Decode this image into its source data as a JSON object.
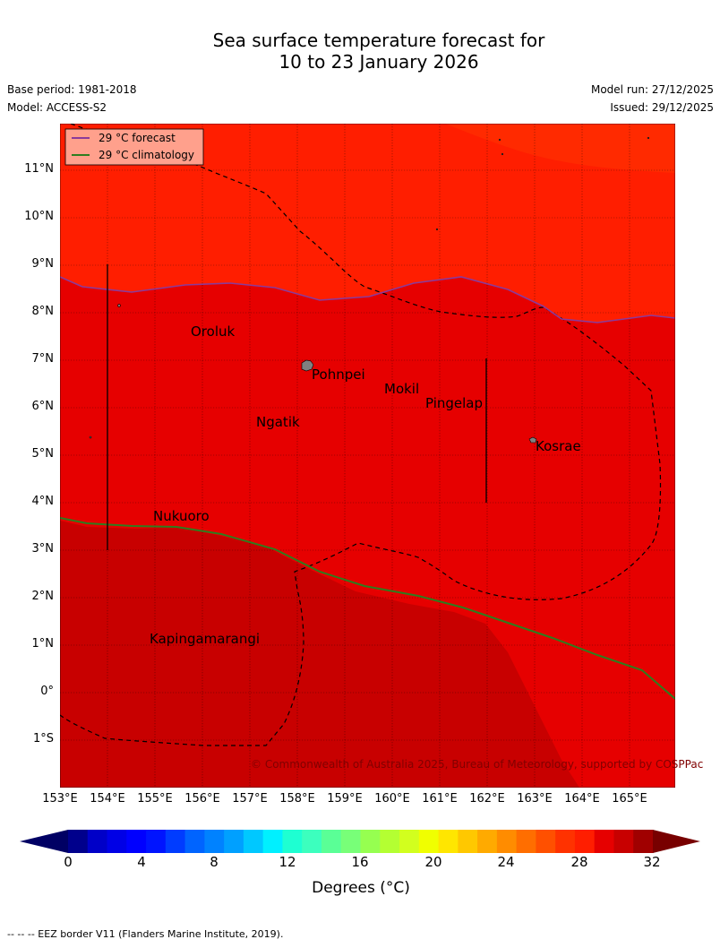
{
  "title_line1": "Sea surface temperature forecast for",
  "title_line2": "10 to 23 January 2026",
  "base_period": "Base period: 1981-2018",
  "model": "Model: ACCESS-S2",
  "model_run": "Model run: 27/12/2025",
  "issued": "Issued: 29/12/2025",
  "map": {
    "lon_range": [
      153,
      166
    ],
    "lat_range": [
      -2,
      12
    ],
    "lat_ticks": [
      "11°N",
      "10°N",
      "9°N",
      "8°N",
      "7°N",
      "6°N",
      "5°N",
      "4°N",
      "3°N",
      "2°N",
      "1°N",
      "0°",
      "1°S"
    ],
    "lon_ticks": [
      "153°E",
      "154°E",
      "155°E",
      "156°E",
      "157°E",
      "158°E",
      "159°E",
      "160°E",
      "161°E",
      "162°E",
      "163°E",
      "164°E",
      "165°E"
    ],
    "legend": [
      {
        "label": "29 °C  forecast",
        "color": "#8b3a9a"
      },
      {
        "label": "29 °C  climatology",
        "color": "#2e7d1e"
      }
    ],
    "places": [
      {
        "name": "Oroluk"
      },
      {
        "name": "Pohnpei"
      },
      {
        "name": "Mokil"
      },
      {
        "name": "Pingelap"
      },
      {
        "name": "Ngatik"
      },
      {
        "name": "Kosrae"
      },
      {
        "name": "Nukuoro"
      },
      {
        "name": "Kapingamarangi"
      }
    ],
    "copyright": "© Commonwealth of Australia 2025, Bureau of Meteorology, supported by COSPPac",
    "fill_colors": {
      "lt29": "#ff1e00",
      "29to30": "#e60000",
      "30to31": "#c80000",
      "gt28light": "#ff2a00"
    }
  },
  "colorbar": {
    "min": 0,
    "max": 32,
    "tick_labels": [
      "0",
      "4",
      "8",
      "12",
      "16",
      "20",
      "24",
      "28",
      "32"
    ],
    "colors": [
      "#00008c",
      "#0000c8",
      "#0000e6",
      "#0000ff",
      "#0014ff",
      "#003cff",
      "#0064ff",
      "#0082ff",
      "#00a0ff",
      "#00c8ff",
      "#00f0ff",
      "#1effd2",
      "#3cffbe",
      "#5aff96",
      "#78ff78",
      "#96ff50",
      "#b4ff32",
      "#d2ff1e",
      "#f0ff00",
      "#ffe600",
      "#ffc800",
      "#ffaa00",
      "#ff8c00",
      "#ff6e00",
      "#ff5000",
      "#ff3200",
      "#ff1e00",
      "#e60000",
      "#c80000",
      "#a00000"
    ],
    "under_color": "#000064",
    "over_color": "#780000",
    "units": "Degrees (°C)"
  },
  "footer": "--  --  -- EEZ border V11 (Flanders Marine Institute, 2019)."
}
